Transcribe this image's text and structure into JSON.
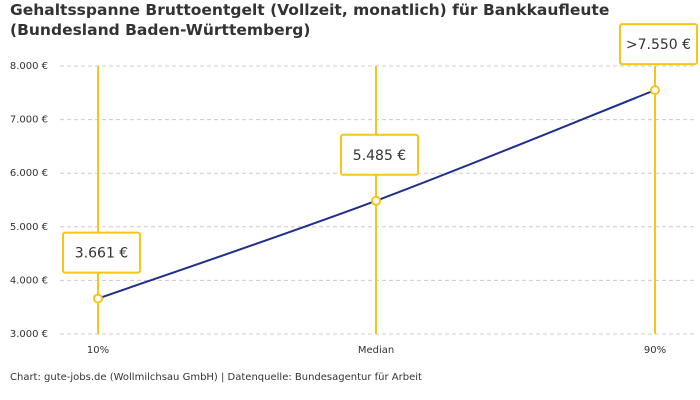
{
  "chart_data": {
    "type": "line",
    "title": "Gehaltsspanne Bruttoentgelt (Vollzeit, monatlich) für Bankkaufleute (Bundesland Baden-Württemberg)",
    "categories": [
      "10%",
      "Median",
      "90%"
    ],
    "values": [
      3661,
      5485,
      7550
    ],
    "value_labels": [
      "3.661 €",
      "5.485 €",
      ">7.550 €"
    ],
    "color": "#1f2f8f",
    "marker_color": "#f5c518",
    "ylim": [
      3000,
      8000
    ],
    "yticks": [
      {
        "value": 3000,
        "label": "3.000 €"
      },
      {
        "value": 4000,
        "label": "4.000 €"
      },
      {
        "value": 5000,
        "label": "5.000 €"
      },
      {
        "value": 6000,
        "label": "6.000 €"
      },
      {
        "value": 7000,
        "label": "7.000 €"
      },
      {
        "value": 8000,
        "label": "8.000 €"
      }
    ],
    "grid": true,
    "source": "Chart: gute-jobs.de (Wollmilchsau GmbH) | Datenquelle: Bundesagentur für Arbeit"
  }
}
